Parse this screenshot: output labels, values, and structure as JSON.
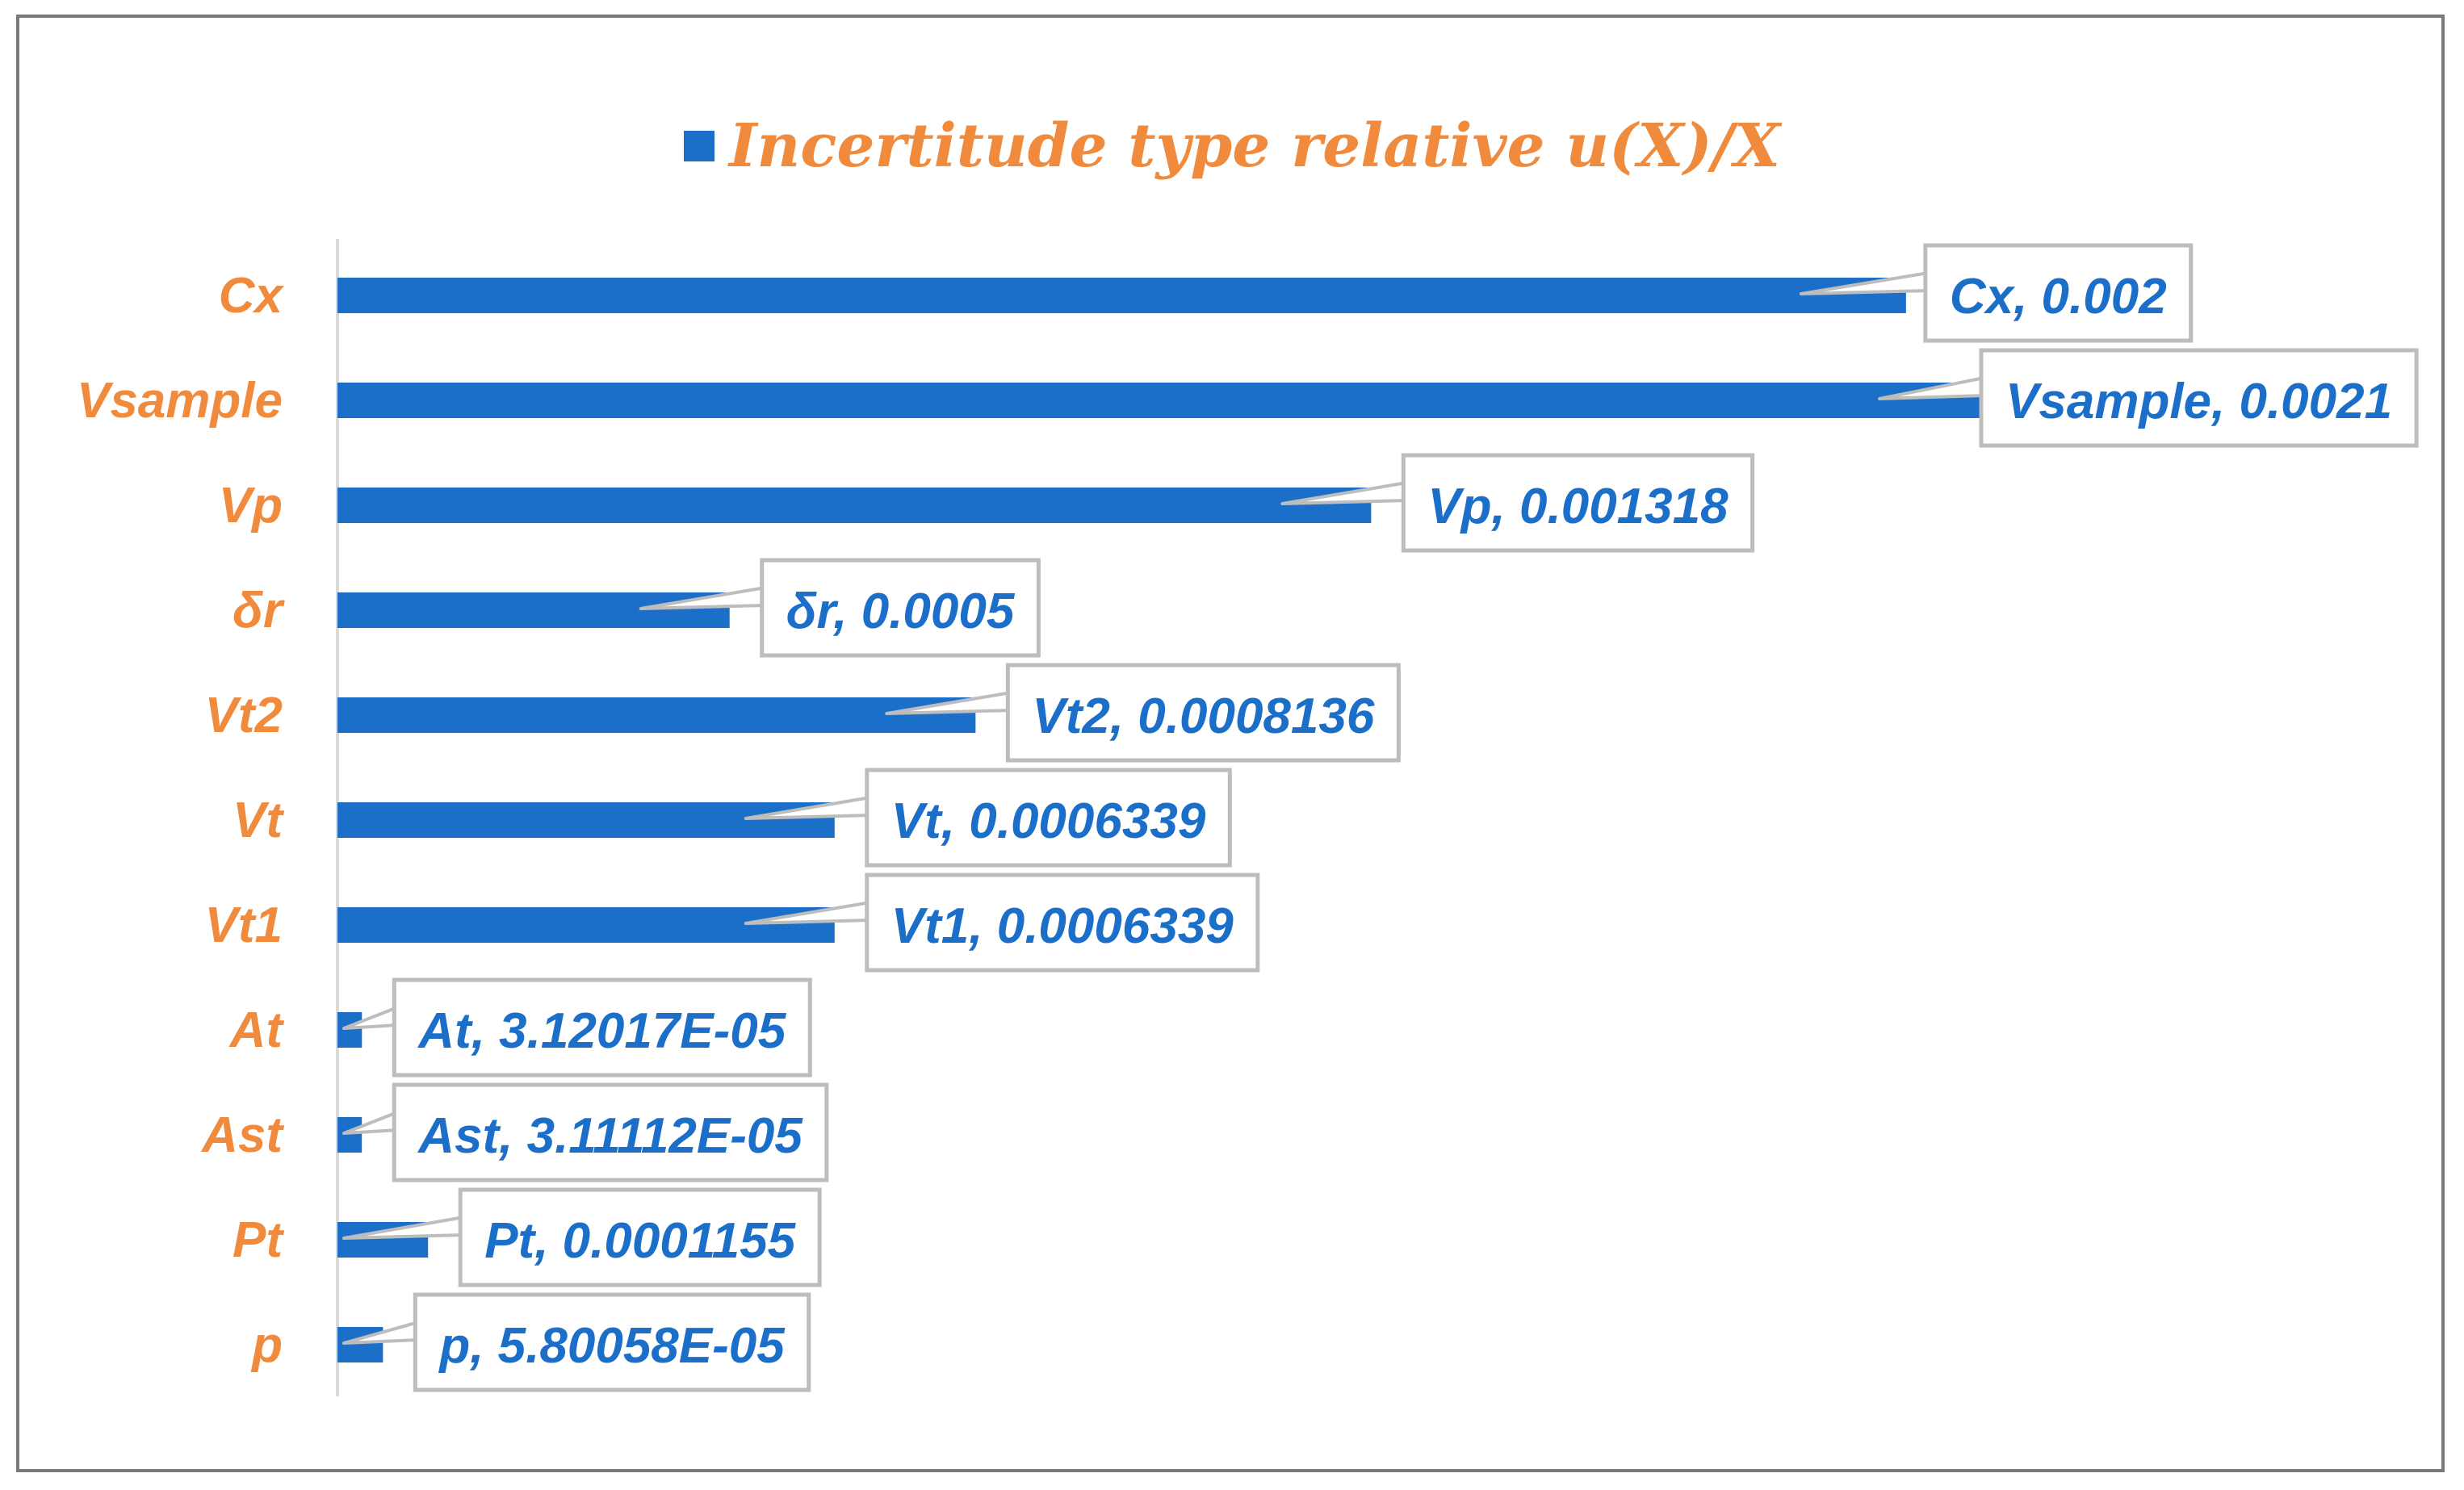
{
  "chart_data": {
    "type": "bar",
    "orientation": "horizontal",
    "legend": {
      "entries": [
        "Incertitude type relative u(X)/X"
      ],
      "placement": "top-center"
    },
    "categories": [
      "Cx",
      "Vsample",
      "Vp",
      "δr",
      "Vt2",
      "Vt",
      "Vt1",
      "At",
      "Ast",
      "Pt",
      "p"
    ],
    "series": [
      {
        "name": "Incertitude type relative u(X)/X",
        "values": [
          0.002,
          0.0021,
          0.001318,
          0.0005,
          0.0008136,
          0.0006339,
          0.0006339,
          3.12017e-05,
          3.11112e-05,
          0.0001155,
          5.80058e-05
        ],
        "color": "#1b6fc8"
      }
    ],
    "data_labels": [
      "Cx, 0.002",
      "Vsample, 0.0021",
      "Vp, 0.001318",
      "δr, 0.0005",
      "Vt2, 0.0008136",
      "Vt, 0.0006339",
      "Vt1, 0.0006339",
      "At, 3.12017E-05",
      "Ast, 3.11112E-05",
      "Pt, 0.0001155",
      "p, 5.80058E-05"
    ],
    "xlim": [
      0,
      0.0021
    ],
    "grid": false,
    "axis_visible": false,
    "category_label_color": "#f08a3c",
    "data_label_color": "#1b6fc8",
    "callout_border_color": "#bdbdbd"
  }
}
